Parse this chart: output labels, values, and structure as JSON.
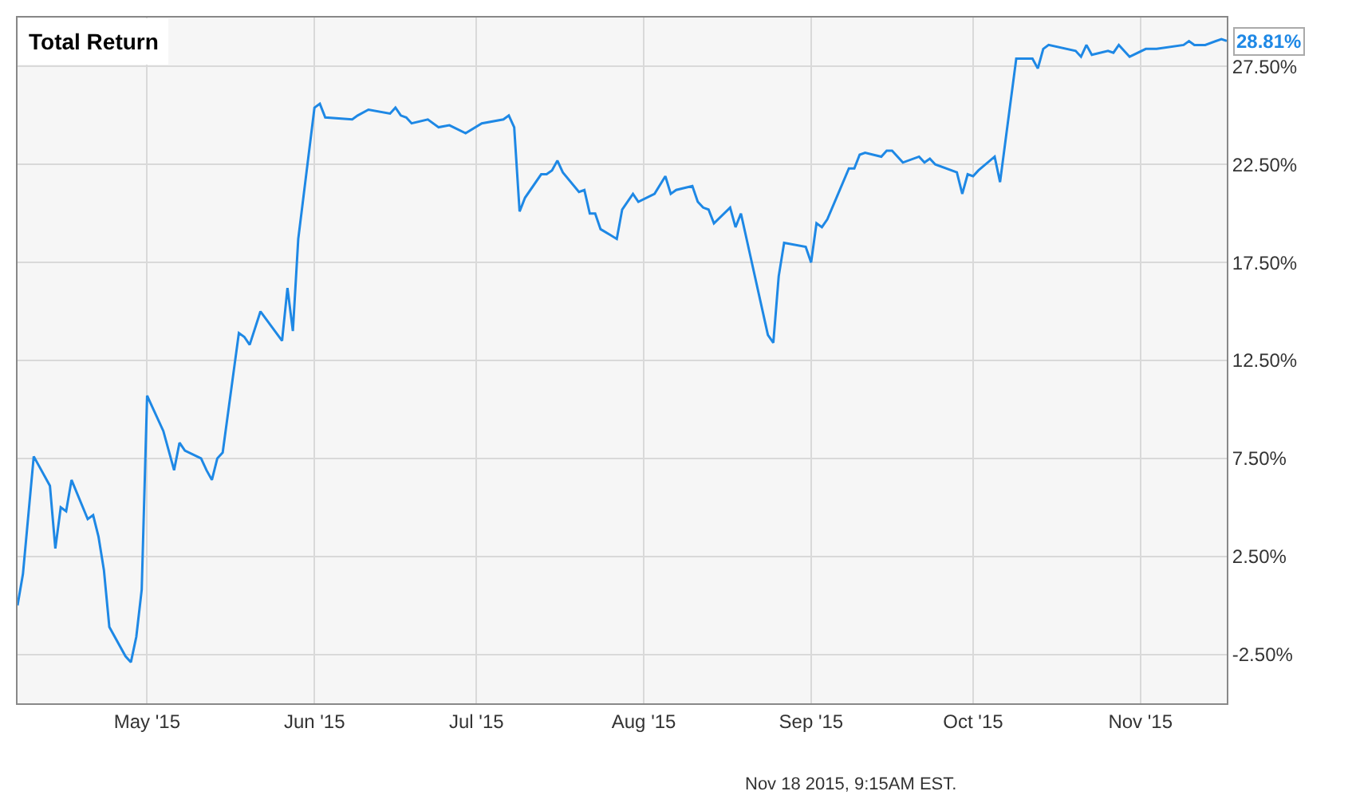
{
  "chart_data": {
    "type": "line",
    "title": "Total Return",
    "annotations": [
      {
        "text": "28.81%",
        "x": "2015-11-17",
        "y": 28.81
      },
      "Nov 18 2015, 9:15AM EST."
    ],
    "x": [
      "2015-04-07",
      "2015-04-08",
      "2015-04-10",
      "2015-04-13",
      "2015-04-14",
      "2015-04-15",
      "2015-04-16",
      "2015-04-17",
      "2015-04-20",
      "2015-04-21",
      "2015-04-22",
      "2015-04-23",
      "2015-04-24",
      "2015-04-27",
      "2015-04-28",
      "2015-04-29",
      "2015-04-30",
      "2015-05-01",
      "2015-05-04",
      "2015-05-06",
      "2015-05-07",
      "2015-05-08",
      "2015-05-11",
      "2015-05-12",
      "2015-05-13",
      "2015-05-14",
      "2015-05-15",
      "2015-05-18",
      "2015-05-19",
      "2015-05-20",
      "2015-05-22",
      "2015-05-26",
      "2015-05-27",
      "2015-05-28",
      "2015-05-29",
      "2015-06-01",
      "2015-06-02",
      "2015-06-03",
      "2015-06-08",
      "2015-06-09",
      "2015-06-11",
      "2015-06-15",
      "2015-06-16",
      "2015-06-17",
      "2015-06-18",
      "2015-06-19",
      "2015-06-22",
      "2015-06-24",
      "2015-06-26",
      "2015-06-29",
      "2015-07-02",
      "2015-07-06",
      "2015-07-07",
      "2015-07-08",
      "2015-07-09",
      "2015-07-10",
      "2015-07-13",
      "2015-07-14",
      "2015-07-15",
      "2015-07-16",
      "2015-07-17",
      "2015-07-20",
      "2015-07-21",
      "2015-07-22",
      "2015-07-23",
      "2015-07-24",
      "2015-07-27",
      "2015-07-28",
      "2015-07-30",
      "2015-07-31",
      "2015-08-03",
      "2015-08-05",
      "2015-08-06",
      "2015-08-07",
      "2015-08-10",
      "2015-08-11",
      "2015-08-12",
      "2015-08-13",
      "2015-08-14",
      "2015-08-17",
      "2015-08-18",
      "2015-08-19",
      "2015-08-24",
      "2015-08-25",
      "2015-08-26",
      "2015-08-27",
      "2015-08-31",
      "2015-09-01",
      "2015-09-02",
      "2015-09-03",
      "2015-09-04",
      "2015-09-08",
      "2015-09-09",
      "2015-09-10",
      "2015-09-11",
      "2015-09-14",
      "2015-09-15",
      "2015-09-16",
      "2015-09-18",
      "2015-09-21",
      "2015-09-22",
      "2015-09-23",
      "2015-09-24",
      "2015-09-28",
      "2015-09-29",
      "2015-09-30",
      "2015-10-01",
      "2015-10-02",
      "2015-10-05",
      "2015-10-06",
      "2015-10-07",
      "2015-10-09",
      "2015-10-12",
      "2015-10-13",
      "2015-10-14",
      "2015-10-15",
      "2015-10-20",
      "2015-10-21",
      "2015-10-22",
      "2015-10-23",
      "2015-10-26",
      "2015-10-27",
      "2015-10-28",
      "2015-10-30",
      "2015-11-02",
      "2015-11-04",
      "2015-11-09",
      "2015-11-10",
      "2015-11-11",
      "2015-11-13",
      "2015-11-16",
      "2015-11-17"
    ],
    "series": [
      {
        "color": "#1e88e5",
        "values": [
          0.0,
          1.6,
          7.6,
          6.1,
          2.9,
          5.0,
          4.8,
          6.4,
          4.4,
          4.6,
          3.5,
          1.8,
          -1.1,
          -2.6,
          -2.9,
          -1.6,
          0.8,
          10.7,
          8.9,
          6.9,
          8.3,
          7.9,
          7.5,
          6.9,
          6.4,
          7.5,
          7.8,
          13.9,
          13.7,
          13.3,
          15.0,
          13.5,
          16.2,
          14.0,
          18.7,
          25.4,
          25.6,
          24.9,
          24.8,
          25.0,
          25.3,
          25.1,
          25.4,
          25.0,
          24.9,
          24.6,
          24.8,
          24.4,
          24.5,
          24.1,
          24.6,
          24.8,
          25.0,
          24.4,
          20.1,
          20.8,
          22.0,
          22.0,
          22.2,
          22.7,
          22.1,
          21.1,
          21.2,
          20.0,
          20.0,
          19.2,
          18.7,
          20.2,
          21.0,
          20.6,
          21.0,
          21.9,
          21.0,
          21.2,
          21.4,
          20.6,
          20.3,
          20.2,
          19.5,
          20.3,
          19.3,
          20.0,
          13.8,
          13.4,
          16.8,
          18.5,
          18.3,
          17.5,
          19.5,
          19.3,
          19.7,
          22.3,
          22.3,
          23.0,
          23.1,
          22.9,
          23.2,
          23.2,
          22.6,
          22.9,
          22.6,
          22.8,
          22.5,
          22.1,
          21.0,
          22.0,
          21.9,
          22.2,
          22.9,
          21.6,
          23.7,
          27.9,
          27.9,
          27.4,
          28.4,
          28.6,
          28.3,
          28.0,
          28.6,
          28.1,
          28.3,
          28.2,
          28.6,
          28.0,
          28.4,
          28.4,
          28.6,
          28.8,
          28.6,
          28.6,
          28.9,
          28.81
        ]
      }
    ],
    "xlim": [
      "2015-04-07",
      "2015-11-17"
    ],
    "xticks": [
      {
        "value": "2015-05-01",
        "label": "May '15"
      },
      {
        "value": "2015-06-01",
        "label": "Jun '15"
      },
      {
        "value": "2015-07-01",
        "label": "Jul '15"
      },
      {
        "value": "2015-08-01",
        "label": "Aug '15"
      },
      {
        "value": "2015-09-01",
        "label": "Sep '15"
      },
      {
        "value": "2015-10-01",
        "label": "Oct '15"
      },
      {
        "value": "2015-11-01",
        "label": "Nov '15"
      }
    ],
    "ylim": [
      -5,
      30
    ],
    "yticks": [
      {
        "value": -2.5,
        "label": "-2.50%"
      },
      {
        "value": 2.5,
        "label": "2.50%"
      },
      {
        "value": 7.5,
        "label": "7.50%"
      },
      {
        "value": 12.5,
        "label": "12.50%"
      },
      {
        "value": 17.5,
        "label": "17.50%"
      },
      {
        "value": 22.5,
        "label": "22.50%"
      },
      {
        "value": 27.5,
        "label": "27.50%"
      }
    ],
    "grid": true,
    "marker": "none",
    "line_style": "solid"
  }
}
